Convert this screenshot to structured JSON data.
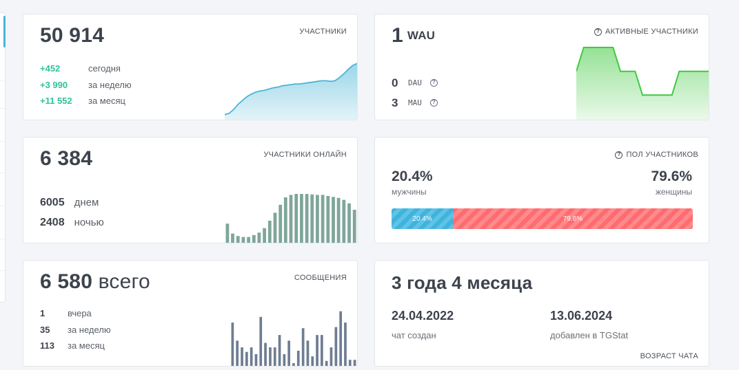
{
  "members": {
    "total": "50 914",
    "title": "УЧАСТНИКИ",
    "rows": [
      {
        "value": "+452",
        "label": "сегодня"
      },
      {
        "value": "+3 990",
        "label": "за неделю"
      },
      {
        "value": "+11 552",
        "label": "за месяц"
      }
    ],
    "trend": [
      0.1,
      0.12,
      0.18,
      0.26,
      0.32,
      0.38,
      0.42,
      0.45,
      0.47,
      0.48,
      0.5,
      0.52,
      0.53,
      0.55,
      0.56,
      0.57,
      0.58,
      0.58,
      0.59,
      0.6,
      0.61,
      0.62,
      0.63,
      0.63,
      0.62,
      0.63,
      0.68,
      0.74,
      0.81,
      0.87,
      0.9
    ],
    "color": "#4ab4d6"
  },
  "active": {
    "value": "1",
    "unit": "WAU",
    "title": "АКТИВНЫЕ УЧАСТНИКИ",
    "rows": [
      {
        "value": "0",
        "label": "DAU"
      },
      {
        "value": "3",
        "label": "MAU"
      }
    ],
    "trend": [
      2,
      3,
      3,
      3,
      3,
      3,
      2,
      2,
      2,
      1,
      1,
      1,
      1,
      1,
      2,
      2,
      2,
      2,
      2
    ],
    "color": "#3fc93f"
  },
  "online": {
    "total": "6 384",
    "title": "УЧАСТНИКИ ОНЛАЙН",
    "rows": [
      {
        "value": "6005",
        "label": "днем"
      },
      {
        "value": "2408",
        "label": "ночью"
      }
    ],
    "hourly": [
      0.4,
      0.2,
      0.15,
      0.13,
      0.13,
      0.17,
      0.22,
      0.31,
      0.46,
      0.62,
      0.78,
      0.93,
      0.98,
      1.0,
      1.0,
      1.0,
      0.99,
      0.98,
      0.98,
      0.96,
      0.94,
      0.92,
      0.88,
      0.81,
      0.68
    ],
    "color": "#7fa69a"
  },
  "gender": {
    "title": "ПОЛ УЧАСТНИКОВ",
    "male_pct": "20.4%",
    "male_label": "мужчины",
    "female_pct": "79.6%",
    "female_label": "женщины",
    "male_share": 20.4,
    "female_share": 79.6,
    "male_color": "#3fb3dc",
    "female_color": "#ff6b6f"
  },
  "messages": {
    "total": "6 580",
    "total_suffix": "всего",
    "title": "СООБЩЕНИЯ",
    "rows": [
      {
        "value": "1",
        "label": "вчера"
      },
      {
        "value": "35",
        "label": "за неделю"
      },
      {
        "value": "113",
        "label": "за месяц"
      }
    ],
    "daily": [
      0.78,
      0.46,
      0.34,
      0.26,
      0.34,
      0.22,
      0.88,
      0.42,
      0.34,
      0.34,
      0.56,
      0.22,
      0.46,
      0.06,
      0.28,
      0.68,
      0.46,
      0.18,
      0.56,
      0.56,
      0.1,
      0.34,
      0.7,
      0.98,
      0.78,
      0.12,
      0.12
    ],
    "color": "#6e7d92"
  },
  "age": {
    "value": "3 года 4 месяца",
    "created_date": "24.04.2022",
    "created_label": "чат создан",
    "added_date": "13.06.2024",
    "added_label": "добавлен в TGStat",
    "title": "ВОЗРАСТ ЧАТА"
  }
}
